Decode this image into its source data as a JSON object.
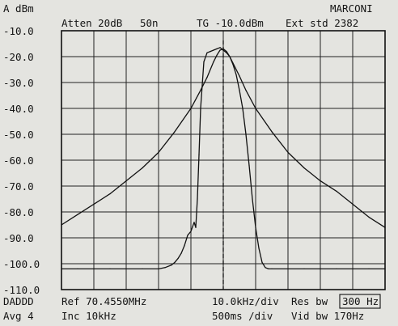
{
  "chart_data": {
    "type": "line",
    "y_unit_label": "A dBm",
    "brand": "MARCONI",
    "header": {
      "atten": "Atten 20dB",
      "sweep_n": "50n",
      "tg": "TG -10.0dBm",
      "ext": "Ext std 2382"
    },
    "footer": {
      "mode": "DADDD",
      "avg": "Avg 4",
      "ref": "Ref  70.4550MHz",
      "inc": "Inc  10kHz",
      "hdiv": "10.0kHz/div",
      "sweep": "500ms /div",
      "res_label": "Res bw",
      "res_value": "300 Hz",
      "vid": "Vid bw   170Hz"
    },
    "yticks": [
      "-10.0",
      "-20.0",
      "-30.0",
      "-40.0",
      "-50.0",
      "-60.0",
      "-70.0",
      "-80.0",
      "-90.0",
      "-100.0",
      "-110.0"
    ],
    "ylim": [
      -110,
      -10
    ],
    "xlim_kHz": [
      -50,
      50
    ],
    "marker_x_kHz": 0,
    "grid": true,
    "series": [
      {
        "x": [
          -50,
          -45,
          -40,
          -35,
          -30,
          -25,
          -20,
          -15,
          -10,
          -7,
          -5,
          -3,
          -2,
          -1,
          0,
          1,
          2,
          3,
          5,
          7,
          10,
          15,
          20,
          25,
          30,
          35,
          40,
          45,
          50
        ],
        "y": [
          -85,
          -81,
          -77,
          -73,
          -68,
          -63,
          -57,
          -49,
          -40,
          -33,
          -28,
          -22,
          -19.5,
          -17.5,
          -17,
          -18,
          -20,
          -22.5,
          -27.5,
          -33,
          -40,
          -49,
          -57,
          -63,
          -68,
          -72,
          -77,
          -82,
          -86
        ]
      },
      {
        "x": [
          -50,
          -45,
          -40,
          -35,
          -30,
          -25,
          -20,
          -18,
          -16,
          -15,
          -14,
          -13,
          -12,
          -11,
          -10,
          -9,
          -8.5,
          -8,
          -7.5,
          -7,
          -6,
          -5,
          -4,
          -3,
          -2,
          -1,
          0,
          1,
          2,
          3,
          4,
          5,
          6,
          7,
          8,
          9,
          10,
          11,
          12,
          13,
          14,
          15,
          20,
          25,
          30,
          35,
          40,
          45,
          50
        ],
        "y": [
          -102,
          -102,
          -102,
          -102,
          -102,
          -102,
          -102,
          -101.5,
          -100.5,
          -99.5,
          -98,
          -96,
          -93,
          -89,
          -87.5,
          -84,
          -86,
          -75,
          -58,
          -40,
          -22,
          -18.5,
          -18,
          -17.5,
          -17,
          -16.5,
          -17.5,
          -18.5,
          -20,
          -23,
          -27,
          -33,
          -40,
          -50,
          -62,
          -75,
          -86,
          -94,
          -99.5,
          -101.5,
          -102,
          -102,
          -102,
          -102,
          -102,
          -102,
          -102,
          -102,
          -102
        ]
      }
    ]
  }
}
